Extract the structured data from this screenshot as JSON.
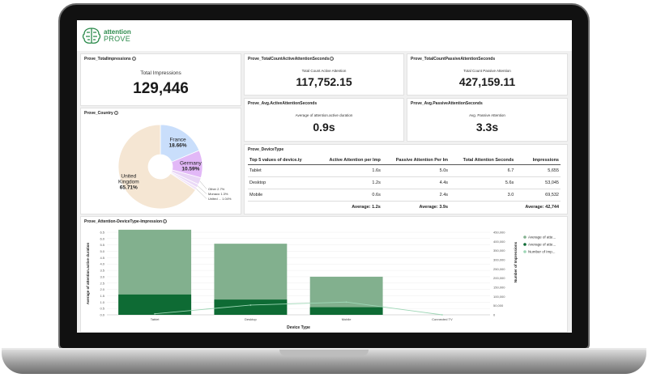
{
  "brand": {
    "line1": "attention",
    "line2": "PROVE"
  },
  "colors": {
    "accent": "#2b8a4b",
    "bar_light": "#82b08e",
    "bar_dark": "#0e6b34",
    "line": "#9dd6b5",
    "pie_france": "#c9defb",
    "pie_germany": "#e2b8f7",
    "pie_uk": "#f5e6d3",
    "pie_other": "#e9d6f6"
  },
  "total_impressions": {
    "title": "Prove_TotalImpressions",
    "label": "Total Impressions",
    "value": "129,446"
  },
  "active_seconds": {
    "title": "Prove_TotalCountActiveAttentionSeconds",
    "label": "Total Count Active Attention",
    "value": "117,752.15"
  },
  "passive_seconds": {
    "title": "Prove_TotalCountPassiveAttentionSeconds",
    "label": "Total Count Passive Attention",
    "value": "427,159.11"
  },
  "avg_active": {
    "title": "Prove_Avg.ActiveAttentionSeconds",
    "label": "Average of attention.active duration",
    "value": "0.9s"
  },
  "avg_passive": {
    "title": "Prove_Avg.PassiveAttentionSeconds",
    "label": "Avg. Passive Attention",
    "value": "3.3s"
  },
  "country": {
    "title": "Prove_Country",
    "slices": [
      {
        "name": "France",
        "pct": 18.66,
        "label_pct": "18.66%"
      },
      {
        "name": "Germany",
        "pct": 10.59,
        "label_pct": "10.59%"
      },
      {
        "name": "Other",
        "pct": 2.7,
        "label_pct": "2.7%"
      },
      {
        "name": "Monaco",
        "pct": 1.3,
        "label_pct": "1.3%"
      },
      {
        "name": "United ...",
        "pct": 1.04,
        "label_pct": "1.04%"
      },
      {
        "name": "United Kingdom",
        "pct": 65.71,
        "label_pct": "65.71%"
      }
    ]
  },
  "device_table": {
    "title": "Prove_DeviceType",
    "headers": [
      "Top 5 values of device.ty",
      "Active Attention per Imp",
      "Passive Attention Per Im",
      "Total Attention Seconds",
      "Impressions"
    ],
    "rows": [
      [
        "Tablet",
        "1.6s",
        "5.0s",
        "6.7",
        "5,655"
      ],
      [
        "Desktop",
        "1.2s",
        "4.4s",
        "5.6s",
        "53,045"
      ],
      [
        "Mobile",
        "0.6s",
        "2.4s",
        "3.0",
        "69,532"
      ]
    ],
    "footer": [
      "",
      "Average: 1.2s",
      "Average: 3.9s",
      "",
      "Average: 42,744"
    ]
  },
  "chart_data": {
    "type": "bar",
    "title": "Prove_Attention-DeviceType-Impression",
    "categories": [
      "Tablet",
      "Desktop",
      "Mobile",
      "Connected TV"
    ],
    "series": [
      {
        "name": "Average of atte...",
        "values": [
          6.7,
          5.6,
          3.0,
          0
        ]
      },
      {
        "name": "Average of atte...",
        "values": [
          1.6,
          1.2,
          0.6,
          0
        ]
      },
      {
        "name": "Number of Imp...",
        "values": [
          5655,
          53045,
          69532,
          0
        ]
      }
    ],
    "xlabel": "Device Type",
    "ylabel": "Average of attention.active duration",
    "y2label": "Number of Impressions",
    "ylim": [
      0,
      6.5
    ],
    "y2lim": [
      0,
      450000
    ],
    "yticks": [
      "0.0",
      "0.5",
      "1.0",
      "1.5",
      "2.0",
      "2.5",
      "3.0",
      "3.5",
      "4.0",
      "4.5",
      "5.0",
      "5.5",
      "6.0",
      "6.5"
    ],
    "y2ticks": [
      "0",
      "50,000",
      "100,000",
      "150,000",
      "200,000",
      "250,000",
      "300,000",
      "350,000",
      "400,000",
      "450,000"
    ],
    "legend_position": "right"
  }
}
